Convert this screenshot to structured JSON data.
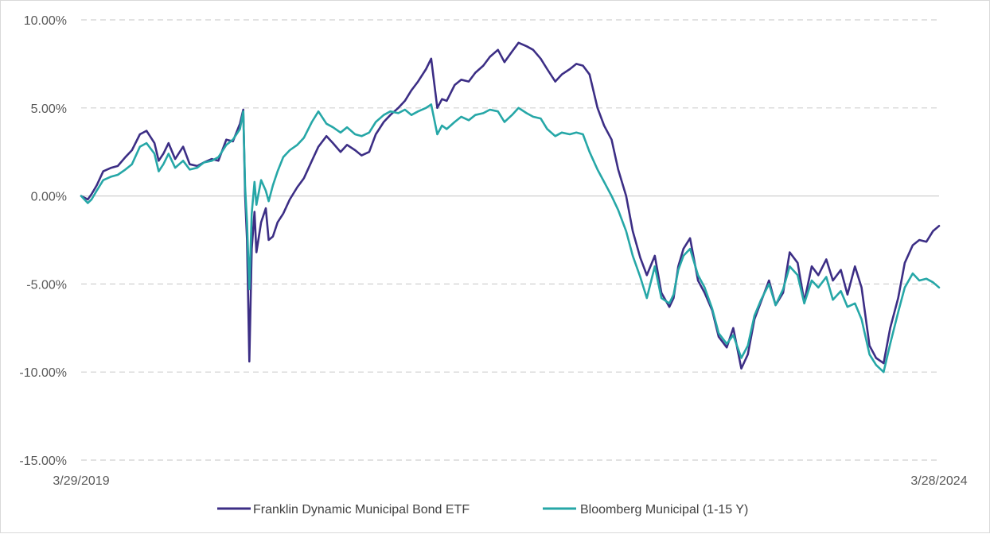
{
  "chart_data": {
    "type": "line",
    "x_start": "3/29/2019",
    "x_end": "3/28/2024",
    "xlim": [
      "2019-03-29",
      "2024-03-28"
    ],
    "x_tick_labels": [
      "3/29/2019",
      "3/28/2024"
    ],
    "ylim": [
      -15,
      10
    ],
    "y_ticks": [
      10,
      5,
      0,
      -5,
      -10,
      -15
    ],
    "y_tick_labels": [
      "10.00%",
      "5.00%",
      "0.00%",
      "-5.00%",
      "-10.00%",
      "-15.00%"
    ],
    "grid": "horizontal dashed",
    "legend_position": "bottom",
    "series": [
      {
        "name": "Franklin Dynamic Municipal Bond ETF",
        "color": "#3c2e85",
        "points": [
          [
            "2019-03-29",
            0.0
          ],
          [
            "2019-04-05",
            -0.1
          ],
          [
            "2019-04-12",
            -0.2
          ],
          [
            "2019-04-20",
            0.1
          ],
          [
            "2019-05-01",
            0.6
          ],
          [
            "2019-05-15",
            1.4
          ],
          [
            "2019-06-01",
            1.6
          ],
          [
            "2019-06-15",
            1.7
          ],
          [
            "2019-07-01",
            2.2
          ],
          [
            "2019-07-15",
            2.6
          ],
          [
            "2019-08-01",
            3.5
          ],
          [
            "2019-08-15",
            3.7
          ],
          [
            "2019-09-01",
            3.0
          ],
          [
            "2019-09-10",
            2.0
          ],
          [
            "2019-09-20",
            2.4
          ],
          [
            "2019-10-01",
            3.0
          ],
          [
            "2019-10-15",
            2.1
          ],
          [
            "2019-11-01",
            2.8
          ],
          [
            "2019-11-15",
            1.8
          ],
          [
            "2019-12-01",
            1.7
          ],
          [
            "2019-12-15",
            1.9
          ],
          [
            "2020-01-01",
            2.1
          ],
          [
            "2020-01-15",
            2.0
          ],
          [
            "2020-02-01",
            3.2
          ],
          [
            "2020-02-15",
            3.1
          ],
          [
            "2020-03-01",
            4.1
          ],
          [
            "2020-03-08",
            4.9
          ],
          [
            "2020-03-12",
            0.0
          ],
          [
            "2020-03-16",
            -2.5
          ],
          [
            "2020-03-21",
            -9.4
          ],
          [
            "2020-03-26",
            -3.0
          ],
          [
            "2020-04-01",
            -0.9
          ],
          [
            "2020-04-05",
            -3.2
          ],
          [
            "2020-04-15",
            -1.5
          ],
          [
            "2020-04-25",
            -0.7
          ],
          [
            "2020-05-01",
            -2.5
          ],
          [
            "2020-05-10",
            -2.3
          ],
          [
            "2020-05-20",
            -1.5
          ],
          [
            "2020-06-01",
            -1.0
          ],
          [
            "2020-06-15",
            -0.2
          ],
          [
            "2020-07-01",
            0.5
          ],
          [
            "2020-07-15",
            1.0
          ],
          [
            "2020-08-01",
            2.0
          ],
          [
            "2020-08-15",
            2.8
          ],
          [
            "2020-09-01",
            3.4
          ],
          [
            "2020-09-15",
            3.0
          ],
          [
            "2020-10-01",
            2.5
          ],
          [
            "2020-10-15",
            2.9
          ],
          [
            "2020-11-01",
            2.6
          ],
          [
            "2020-11-15",
            2.3
          ],
          [
            "2020-12-01",
            2.5
          ],
          [
            "2020-12-15",
            3.5
          ],
          [
            "2021-01-01",
            4.2
          ],
          [
            "2021-01-15",
            4.6
          ],
          [
            "2021-02-01",
            5.0
          ],
          [
            "2021-02-15",
            5.4
          ],
          [
            "2021-03-01",
            6.0
          ],
          [
            "2021-03-15",
            6.5
          ],
          [
            "2021-04-01",
            7.2
          ],
          [
            "2021-04-12",
            7.8
          ],
          [
            "2021-04-25",
            5.0
          ],
          [
            "2021-05-05",
            5.5
          ],
          [
            "2021-05-15",
            5.4
          ],
          [
            "2021-06-01",
            6.3
          ],
          [
            "2021-06-15",
            6.6
          ],
          [
            "2021-07-01",
            6.5
          ],
          [
            "2021-07-15",
            7.0
          ],
          [
            "2021-08-01",
            7.4
          ],
          [
            "2021-08-15",
            7.9
          ],
          [
            "2021-09-01",
            8.3
          ],
          [
            "2021-09-15",
            7.6
          ],
          [
            "2021-10-01",
            8.2
          ],
          [
            "2021-10-15",
            8.7
          ],
          [
            "2021-11-01",
            8.5
          ],
          [
            "2021-11-15",
            8.3
          ],
          [
            "2021-12-01",
            7.8
          ],
          [
            "2021-12-15",
            7.2
          ],
          [
            "2022-01-01",
            6.5
          ],
          [
            "2022-01-15",
            6.9
          ],
          [
            "2022-02-01",
            7.2
          ],
          [
            "2022-02-15",
            7.5
          ],
          [
            "2022-03-01",
            7.4
          ],
          [
            "2022-03-15",
            6.9
          ],
          [
            "2022-04-01",
            5.0
          ],
          [
            "2022-04-15",
            4.0
          ],
          [
            "2022-05-01",
            3.2
          ],
          [
            "2022-05-15",
            1.5
          ],
          [
            "2022-06-01",
            0.0
          ],
          [
            "2022-06-15",
            -2.0
          ],
          [
            "2022-07-01",
            -3.5
          ],
          [
            "2022-07-15",
            -4.5
          ],
          [
            "2022-08-01",
            -3.4
          ],
          [
            "2022-08-15",
            -5.5
          ],
          [
            "2022-09-01",
            -6.3
          ],
          [
            "2022-09-10",
            -5.8
          ],
          [
            "2022-09-20",
            -4.0
          ],
          [
            "2022-10-01",
            -3.0
          ],
          [
            "2022-10-15",
            -2.4
          ],
          [
            "2022-11-01",
            -4.8
          ],
          [
            "2022-11-15",
            -5.5
          ],
          [
            "2022-12-01",
            -6.5
          ],
          [
            "2022-12-15",
            -8.0
          ],
          [
            "2023-01-01",
            -8.6
          ],
          [
            "2023-01-15",
            -7.5
          ],
          [
            "2023-02-01",
            -9.8
          ],
          [
            "2023-02-15",
            -9.0
          ],
          [
            "2023-03-01",
            -7.0
          ],
          [
            "2023-03-15",
            -6.0
          ],
          [
            "2023-04-01",
            -4.8
          ],
          [
            "2023-04-15",
            -6.2
          ],
          [
            "2023-05-01",
            -5.5
          ],
          [
            "2023-05-15",
            -3.2
          ],
          [
            "2023-06-01",
            -3.8
          ],
          [
            "2023-06-15",
            -6.0
          ],
          [
            "2023-07-01",
            -4.0
          ],
          [
            "2023-07-15",
            -4.5
          ],
          [
            "2023-08-01",
            -3.6
          ],
          [
            "2023-08-15",
            -4.8
          ],
          [
            "2023-09-01",
            -4.2
          ],
          [
            "2023-09-15",
            -5.6
          ],
          [
            "2023-10-01",
            -4.0
          ],
          [
            "2023-10-15",
            -5.2
          ],
          [
            "2023-11-01",
            -8.5
          ],
          [
            "2023-11-15",
            -9.2
          ],
          [
            "2023-12-01",
            -9.5
          ],
          [
            "2023-12-15",
            -7.5
          ],
          [
            "2024-01-01",
            -5.8
          ],
          [
            "2024-01-15",
            -3.8
          ],
          [
            "2024-02-01",
            -2.8
          ],
          [
            "2024-02-15",
            -2.5
          ],
          [
            "2024-03-01",
            -2.6
          ],
          [
            "2024-03-15",
            -2.0
          ],
          [
            "2024-03-28",
            -1.7
          ]
        ]
      },
      {
        "name": "Bloomberg Municipal (1-15 Y)",
        "color": "#26a7a7",
        "points": [
          [
            "2019-03-29",
            0.0
          ],
          [
            "2019-04-05",
            -0.2
          ],
          [
            "2019-04-12",
            -0.4
          ],
          [
            "2019-04-20",
            -0.2
          ],
          [
            "2019-05-01",
            0.3
          ],
          [
            "2019-05-15",
            0.9
          ],
          [
            "2019-06-01",
            1.1
          ],
          [
            "2019-06-15",
            1.2
          ],
          [
            "2019-07-01",
            1.5
          ],
          [
            "2019-07-15",
            1.8
          ],
          [
            "2019-08-01",
            2.8
          ],
          [
            "2019-08-15",
            3.0
          ],
          [
            "2019-09-01",
            2.4
          ],
          [
            "2019-09-10",
            1.4
          ],
          [
            "2019-09-20",
            1.8
          ],
          [
            "2019-10-01",
            2.4
          ],
          [
            "2019-10-15",
            1.6
          ],
          [
            "2019-11-01",
            2.0
          ],
          [
            "2019-11-15",
            1.5
          ],
          [
            "2019-12-01",
            1.6
          ],
          [
            "2019-12-15",
            1.9
          ],
          [
            "2020-01-01",
            2.0
          ],
          [
            "2020-01-15",
            2.2
          ],
          [
            "2020-02-01",
            2.9
          ],
          [
            "2020-02-15",
            3.2
          ],
          [
            "2020-03-01",
            3.8
          ],
          [
            "2020-03-08",
            4.8
          ],
          [
            "2020-03-12",
            0.5
          ],
          [
            "2020-03-16",
            -1.5
          ],
          [
            "2020-03-21",
            -5.3
          ],
          [
            "2020-03-26",
            -1.0
          ],
          [
            "2020-04-01",
            0.8
          ],
          [
            "2020-04-05",
            -0.5
          ],
          [
            "2020-04-15",
            0.9
          ],
          [
            "2020-04-25",
            0.3
          ],
          [
            "2020-05-01",
            -0.3
          ],
          [
            "2020-05-10",
            0.6
          ],
          [
            "2020-05-20",
            1.4
          ],
          [
            "2020-06-01",
            2.2
          ],
          [
            "2020-06-15",
            2.6
          ],
          [
            "2020-07-01",
            2.9
          ],
          [
            "2020-07-15",
            3.3
          ],
          [
            "2020-08-01",
            4.2
          ],
          [
            "2020-08-15",
            4.8
          ],
          [
            "2020-09-01",
            4.1
          ],
          [
            "2020-09-15",
            3.9
          ],
          [
            "2020-10-01",
            3.6
          ],
          [
            "2020-10-15",
            3.9
          ],
          [
            "2020-11-01",
            3.5
          ],
          [
            "2020-11-15",
            3.4
          ],
          [
            "2020-12-01",
            3.6
          ],
          [
            "2020-12-15",
            4.2
          ],
          [
            "2021-01-01",
            4.6
          ],
          [
            "2021-01-15",
            4.8
          ],
          [
            "2021-02-01",
            4.7
          ],
          [
            "2021-02-15",
            4.9
          ],
          [
            "2021-03-01",
            4.6
          ],
          [
            "2021-03-15",
            4.8
          ],
          [
            "2021-04-01",
            5.0
          ],
          [
            "2021-04-12",
            5.2
          ],
          [
            "2021-04-25",
            3.5
          ],
          [
            "2021-05-05",
            4.0
          ],
          [
            "2021-05-15",
            3.8
          ],
          [
            "2021-06-01",
            4.2
          ],
          [
            "2021-06-15",
            4.5
          ],
          [
            "2021-07-01",
            4.3
          ],
          [
            "2021-07-15",
            4.6
          ],
          [
            "2021-08-01",
            4.7
          ],
          [
            "2021-08-15",
            4.9
          ],
          [
            "2021-09-01",
            4.8
          ],
          [
            "2021-09-15",
            4.2
          ],
          [
            "2021-10-01",
            4.6
          ],
          [
            "2021-10-15",
            5.0
          ],
          [
            "2021-11-01",
            4.7
          ],
          [
            "2021-11-15",
            4.5
          ],
          [
            "2021-12-01",
            4.4
          ],
          [
            "2021-12-15",
            3.8
          ],
          [
            "2022-01-01",
            3.4
          ],
          [
            "2022-01-15",
            3.6
          ],
          [
            "2022-02-01",
            3.5
          ],
          [
            "2022-02-15",
            3.6
          ],
          [
            "2022-03-01",
            3.5
          ],
          [
            "2022-03-15",
            2.5
          ],
          [
            "2022-04-01",
            1.5
          ],
          [
            "2022-04-15",
            0.8
          ],
          [
            "2022-05-01",
            0.0
          ],
          [
            "2022-05-15",
            -0.8
          ],
          [
            "2022-06-01",
            -2.0
          ],
          [
            "2022-06-15",
            -3.4
          ],
          [
            "2022-07-01",
            -4.6
          ],
          [
            "2022-07-15",
            -5.8
          ],
          [
            "2022-08-01",
            -4.0
          ],
          [
            "2022-08-15",
            -5.8
          ],
          [
            "2022-09-01",
            -6.1
          ],
          [
            "2022-09-10",
            -5.6
          ],
          [
            "2022-09-20",
            -4.2
          ],
          [
            "2022-10-01",
            -3.4
          ],
          [
            "2022-10-15",
            -3.0
          ],
          [
            "2022-11-01",
            -4.5
          ],
          [
            "2022-11-15",
            -5.2
          ],
          [
            "2022-12-01",
            -6.4
          ],
          [
            "2022-12-15",
            -7.8
          ],
          [
            "2023-01-01",
            -8.4
          ],
          [
            "2023-01-15",
            -7.9
          ],
          [
            "2023-02-01",
            -9.2
          ],
          [
            "2023-02-15",
            -8.5
          ],
          [
            "2023-03-01",
            -6.8
          ],
          [
            "2023-03-15",
            -5.9
          ],
          [
            "2023-04-01",
            -5.0
          ],
          [
            "2023-04-15",
            -6.2
          ],
          [
            "2023-05-01",
            -5.3
          ],
          [
            "2023-05-15",
            -4.0
          ],
          [
            "2023-06-01",
            -4.5
          ],
          [
            "2023-06-15",
            -6.1
          ],
          [
            "2023-07-01",
            -4.8
          ],
          [
            "2023-07-15",
            -5.2
          ],
          [
            "2023-08-01",
            -4.6
          ],
          [
            "2023-08-15",
            -5.9
          ],
          [
            "2023-09-01",
            -5.4
          ],
          [
            "2023-09-15",
            -6.3
          ],
          [
            "2023-10-01",
            -6.1
          ],
          [
            "2023-10-15",
            -7.0
          ],
          [
            "2023-11-01",
            -9.0
          ],
          [
            "2023-11-15",
            -9.6
          ],
          [
            "2023-12-01",
            -10.0
          ],
          [
            "2023-12-15",
            -8.4
          ],
          [
            "2024-01-01",
            -6.6
          ],
          [
            "2024-01-15",
            -5.2
          ],
          [
            "2024-02-01",
            -4.4
          ],
          [
            "2024-02-15",
            -4.8
          ],
          [
            "2024-03-01",
            -4.7
          ],
          [
            "2024-03-15",
            -4.9
          ],
          [
            "2024-03-28",
            -5.2
          ]
        ]
      }
    ]
  }
}
